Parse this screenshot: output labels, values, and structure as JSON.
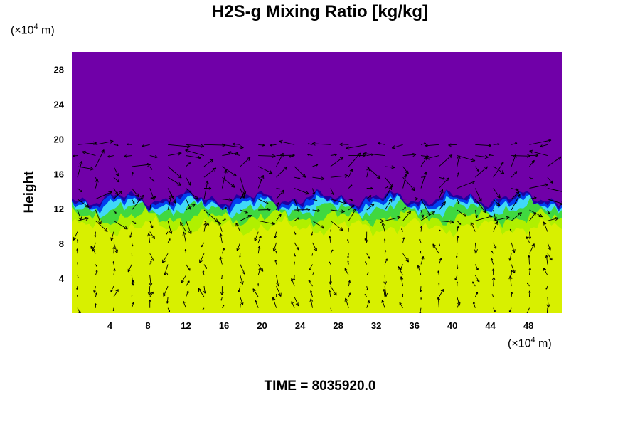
{
  "chart_data": {
    "type": "heatmap",
    "title": "H2S-g Mixing Ratio [kg/kg]",
    "ylabel": "Height",
    "x_unit": {
      "prefix": "(×10",
      "exp": "4",
      "suffix": " m)"
    },
    "y_unit": {
      "prefix": "(×10",
      "exp": "4",
      "suffix": " m)"
    },
    "xlim": [
      0,
      51.5
    ],
    "ylim": [
      0,
      30
    ],
    "x_ticks": [
      "4",
      "8",
      "12",
      "16",
      "20",
      "24",
      "28",
      "32",
      "36",
      "40",
      "44",
      "48"
    ],
    "y_ticks": [
      "4",
      "8",
      "12",
      "16",
      "20",
      "24",
      "28"
    ],
    "time_label": "TIME = 8035920.0",
    "colors": {
      "upper": "#7000a8",
      "lower": "#d8f000",
      "band_mid": "#b0f000",
      "band_green": "#40d840",
      "band_cyan": "#40d8f8",
      "band_blue": "#0040f0",
      "band_navy": "#2000a0",
      "vector": "#000000"
    }
  }
}
